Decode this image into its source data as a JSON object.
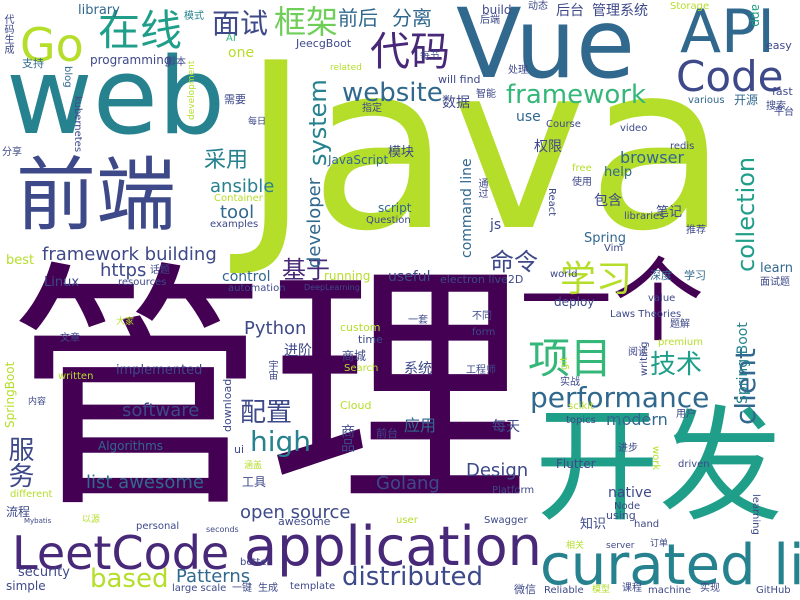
{
  "palette": {
    "dark_purple": "#440154",
    "violet": "#482878",
    "indigo": "#3e4989",
    "blue": "#31688e",
    "steel_blue": "#26828e",
    "teal": "#1f9e89",
    "green": "#35b779",
    "light_green": "#6ece58",
    "lime": "#b5de2b",
    "yellow": "#fde725"
  },
  "words": {
    "java": "Java",
    "web": "web",
    "vue": "Vue",
    "guanli": "管理",
    "kaifa": "开发",
    "yige": "一个",
    "qianduan": "前端",
    "curated_list": "curated list",
    "application": "application",
    "leetcode": "LeetCode",
    "api": "API",
    "code": "Code",
    "go": "Go",
    "zaixian": "在线",
    "daima": "代码",
    "mianshi": "面试",
    "kuangjia": "框架",
    "xiangmu": "项目",
    "xuexi": "学习",
    "website": "website",
    "framework": "framework",
    "collection": "collection",
    "client": "client",
    "performance": "performance",
    "high": "high",
    "system": "system",
    "distributed": "distributed",
    "based": "based",
    "jishu": "技术",
    "peizhi": "配置",
    "fuwu": "服务",
    "caiyong": "采用",
    "jiyu": "基于",
    "mingling": "命令",
    "developer": "developer",
    "ansible": "ansible",
    "tool": "tool",
    "framework_building": "framework building",
    "https": "https",
    "python": "Python",
    "software": "software",
    "list_awesome": "list awesome",
    "open_source": "open source",
    "patterns": "Patterns",
    "golang": "Golang",
    "design": "Design",
    "modern": "modern",
    "spring_boot": "Spring Boot",
    "javascript": "JavaScript",
    "command_line": "command line",
    "browser": "browser",
    "qianhou": "前后",
    "fenli": "分离",
    "houtai": "后台",
    "guanli_xitong": "管理系统",
    "zhichi": "支持",
    "library": "library",
    "moshi": "模式",
    "daima_shengcheng": "代码生成",
    "ai": "AI",
    "jeecgboot": "JeecgBoot",
    "programming": "programming",
    "blog": "blog",
    "one": "one",
    "build": "build",
    "dongtai": "动态",
    "houduan": "后端",
    "storage": "Storage",
    "app": "app",
    "easy": "easy",
    "fast": "fast",
    "pingtai": "平台",
    "sousuo": "搜索",
    "various": "various",
    "kaiyuan": "开源",
    "zhineng": "智能",
    "shuju": "数据",
    "chuli": "处理",
    "will_find": "will find",
    "meijie": "每节",
    "related": "related",
    "jiaoben": "脚本",
    "xuyao": "需要",
    "meiri": "每日",
    "zhiding": "指定",
    "use": "use",
    "course": "Course",
    "video": "video",
    "redis": "redis",
    "quanxian": "权限",
    "mokuai": "模块",
    "kubernetes": "kubernetes",
    "fenxiang": "分享",
    "development": "development",
    "dajia": "大家",
    "container": "Container",
    "examples": "examples",
    "best": "best",
    "linux": "Linux",
    "huati": "话题",
    "resources": "resources",
    "control": "control",
    "running": "running",
    "automation": "automation",
    "deeplearning": "DeepLearning",
    "useful": "useful",
    "electron_live2d": "electron live2D",
    "world": "world",
    "deploy": "deploy",
    "laws_theories": "Laws Theories",
    "value": "value",
    "learn": "learn",
    "mianshiti": "面试题",
    "shendu": "深度",
    "xuexi_small": "学习",
    "vim": "Vim",
    "tuijian": "推荐",
    "spring": "Spring",
    "libraries": "libraries",
    "biji": "笔记",
    "baohan": "包含",
    "js": "js",
    "question": "Question",
    "script": "script",
    "react": "React",
    "free": "free",
    "shiyong": "使用",
    "tongguo": "通过",
    "help": "help",
    "premium": "premium",
    "tijie": "题解",
    "custom": "custom",
    "time": "time",
    "yitao": "一套",
    "butong": "不同",
    "form": "form",
    "wenzhang": "文章",
    "yuzhou": "宇宙",
    "jinjie": "进阶",
    "shangcheng": "商城",
    "xitong": "系统",
    "gongchengshi": "工程师",
    "git": "git",
    "shizhan": "实战",
    "writing": "writing",
    "yuedu": "阅读",
    "search": "Search",
    "written": "written",
    "implemented": "implemented",
    "springboot": "SpringBoot",
    "download": "download",
    "cloud": "Cloud",
    "topics": "topics",
    "scikit": "scikit",
    "yonghu": "用户",
    "shangpin": "商品",
    "qiantai": "前台",
    "yingyong": "应用",
    "meitian": "每天",
    "neirong": "内容",
    "algorithms": "Algorithms",
    "ui": "ui",
    "hangai": "涵盖",
    "gongju": "工具",
    "flutter": "Flutter",
    "jinbu": "进步",
    "work": "work",
    "driven": "driven",
    "platform": "Platform",
    "liucheng": "流程",
    "different": "different",
    "mybatis": "Mybatis",
    "yiyuan": "以源",
    "personal": "personal",
    "seconds": "seconds",
    "awesome": "awesome",
    "user": "user",
    "swagger": "Swagger",
    "native": "native",
    "node": "Node",
    "using": "using",
    "zhishi": "知识",
    "hand": "hand",
    "learning": "learning",
    "xiangguan": "相关",
    "server": "server",
    "dingdan": "订单",
    "security": "security",
    "simple": "simple",
    "large_scale": "large scale",
    "better": "better",
    "template": "template",
    "yijian": "一键",
    "shengcheng": "生成",
    "weixin": "微信",
    "reliable": "Reliable",
    "moxing": "模型",
    "kecheng": "课程",
    "machine": "machine",
    "shixian": "实现",
    "github": "GitHub"
  }
}
